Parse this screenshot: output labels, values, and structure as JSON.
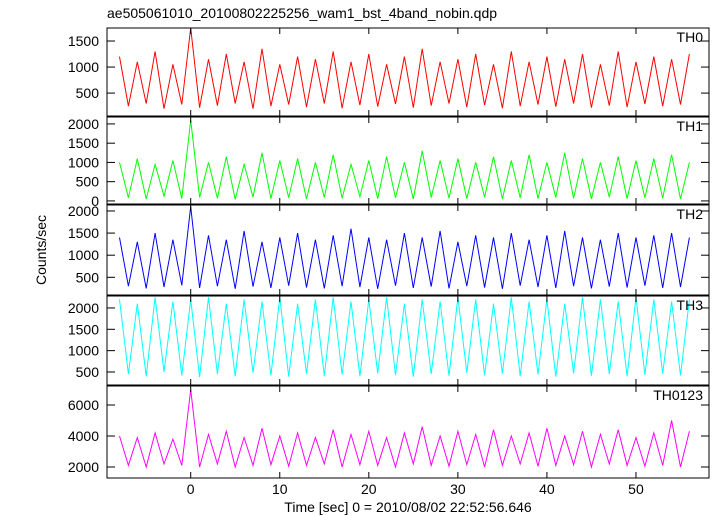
{
  "chart_data": [
    {
      "type": "line",
      "title": "ae505061010_20100802225256_wam1_bst_4band_nobin.qdp",
      "x": [
        -8,
        -7,
        -6,
        -5,
        -4,
        -3,
        -2,
        -1,
        0,
        1,
        2,
        3,
        4,
        5,
        6,
        7,
        8,
        9,
        10,
        11,
        12,
        13,
        14,
        15,
        16,
        17,
        18,
        19,
        20,
        21,
        22,
        23,
        24,
        25,
        26,
        27,
        28,
        29,
        30,
        31,
        32,
        33,
        34,
        35,
        36,
        37,
        38,
        39,
        40,
        41,
        42,
        43,
        44,
        45,
        46,
        47,
        48,
        49,
        50,
        51,
        52,
        53,
        54,
        55,
        56
      ],
      "series": [
        {
          "name": "TH0",
          "color": "#ff0000",
          "values": [
            1200,
            250,
            1100,
            300,
            1300,
            200,
            1050,
            280,
            1750,
            220,
            1150,
            260,
            1250,
            300,
            1100,
            200,
            1350,
            250,
            1050,
            280,
            1200,
            230,
            1150,
            300,
            1300,
            210,
            1100,
            270,
            1250,
            240,
            1050,
            290,
            1200,
            220,
            1350,
            260,
            1100,
            300,
            1150,
            230,
            1250,
            270,
            1050,
            210,
            1300,
            250,
            1100,
            280,
            1200,
            240,
            1150,
            300,
            1250,
            220,
            1050,
            260,
            1300,
            230,
            1100,
            290,
            1200,
            250,
            1150,
            280,
            1250
          ]
        }
      ],
      "xlim": [
        -9.4,
        58.2
      ],
      "xticks": [
        0,
        10,
        20,
        30,
        40,
        50
      ],
      "ylim": [
        60,
        1750
      ],
      "yticks": [
        500,
        1000,
        1500
      ]
    },
    {
      "type": "line",
      "x": [
        -8,
        -7,
        -6,
        -5,
        -4,
        -3,
        -2,
        -1,
        0,
        1,
        2,
        3,
        4,
        5,
        6,
        7,
        8,
        9,
        10,
        11,
        12,
        13,
        14,
        15,
        16,
        17,
        18,
        19,
        20,
        21,
        22,
        23,
        24,
        25,
        26,
        27,
        28,
        29,
        30,
        31,
        32,
        33,
        34,
        35,
        36,
        37,
        38,
        39,
        40,
        41,
        42,
        43,
        44,
        45,
        46,
        47,
        48,
        49,
        50,
        51,
        52,
        53,
        54,
        55,
        56
      ],
      "series": [
        {
          "name": "TH1",
          "color": "#00ff00",
          "values": [
            1000,
            80,
            1100,
            50,
            950,
            120,
            1050,
            60,
            2100,
            90,
            1000,
            70,
            1150,
            40,
            950,
            100,
            1250,
            60,
            1050,
            80,
            1100,
            50,
            1000,
            90,
            1200,
            70,
            950,
            110,
            1050,
            60,
            1150,
            80,
            1000,
            50,
            1300,
            90,
            1050,
            70,
            1100,
            60,
            1000,
            100,
            1150,
            50,
            1050,
            80,
            1200,
            60,
            1000,
            90,
            1250,
            70,
            1100,
            50,
            1000,
            100,
            1150,
            60,
            1050,
            80,
            1100,
            70,
            1200,
            50,
            1000
          ]
        }
      ],
      "xlim": [
        -9.4,
        58.2
      ],
      "xticks": [
        0,
        10,
        20,
        30,
        40,
        50
      ],
      "ylim": [
        -80,
        2180
      ],
      "yticks": [
        0,
        500,
        1000,
        1500,
        2000
      ]
    },
    {
      "type": "line",
      "ylabel": "Counts/sec",
      "x": [
        -8,
        -7,
        -6,
        -5,
        -4,
        -3,
        -2,
        -1,
        0,
        1,
        2,
        3,
        4,
        5,
        6,
        7,
        8,
        9,
        10,
        11,
        12,
        13,
        14,
        15,
        16,
        17,
        18,
        19,
        20,
        21,
        22,
        23,
        24,
        25,
        26,
        27,
        28,
        29,
        30,
        31,
        32,
        33,
        34,
        35,
        36,
        37,
        38,
        39,
        40,
        41,
        42,
        43,
        44,
        45,
        46,
        47,
        48,
        49,
        50,
        51,
        52,
        53,
        54,
        55,
        56
      ],
      "series": [
        {
          "name": "TH2",
          "color": "#0000ff",
          "values": [
            1400,
            300,
            1300,
            250,
            1500,
            280,
            1350,
            320,
            2100,
            260,
            1450,
            300,
            1350,
            240,
            1550,
            290,
            1300,
            260,
            1400,
            310,
            1500,
            270,
            1350,
            250,
            1450,
            300,
            1600,
            280,
            1400,
            240,
            1350,
            310,
            1500,
            260,
            1400,
            290,
            1550,
            250,
            1300,
            300,
            1450,
            270,
            1400,
            240,
            1500,
            310,
            1350,
            280,
            1450,
            260,
            1550,
            300,
            1400,
            250,
            1350,
            290,
            1500,
            270,
            1400,
            310,
            1450,
            260,
            1500,
            280,
            1400
          ]
        }
      ],
      "xlim": [
        -9.4,
        58.2
      ],
      "xticks": [
        0,
        10,
        20,
        30,
        40,
        50
      ],
      "ylim": [
        100,
        2135
      ],
      "yticks": [
        500,
        1000,
        1500,
        2000
      ]
    },
    {
      "type": "line",
      "x": [
        -8,
        -7,
        -6,
        -5,
        -4,
        -3,
        -2,
        -1,
        0,
        1,
        2,
        3,
        4,
        5,
        6,
        7,
        8,
        9,
        10,
        11,
        12,
        13,
        14,
        15,
        16,
        17,
        18,
        19,
        20,
        21,
        22,
        23,
        24,
        25,
        26,
        27,
        28,
        29,
        30,
        31,
        32,
        33,
        34,
        35,
        36,
        37,
        38,
        39,
        40,
        41,
        42,
        43,
        44,
        45,
        46,
        47,
        48,
        49,
        50,
        51,
        52,
        53,
        54,
        55,
        56
      ],
      "series": [
        {
          "name": "TH3",
          "color": "#00ffff",
          "values": [
            2200,
            450,
            2100,
            400,
            2250,
            500,
            2150,
            420,
            2200,
            380,
            2250,
            450,
            2100,
            400,
            2200,
            480,
            2150,
            420,
            2250,
            390,
            2100,
            460,
            2200,
            410,
            2250,
            440,
            2150,
            400,
            2200,
            470,
            2250,
            430,
            2100,
            390,
            2200,
            450,
            2150,
            410,
            2250,
            480,
            2200,
            420,
            2100,
            460,
            2250,
            400,
            2150,
            440,
            2200,
            390,
            2100,
            470,
            2250,
            410,
            2200,
            450,
            2150,
            400,
            2250,
            430,
            2200,
            460,
            2150,
            420,
            2200
          ]
        }
      ],
      "xlim": [
        -9.4,
        58.2
      ],
      "xticks": [
        0,
        10,
        20,
        30,
        40,
        50
      ],
      "ylim": [
        195,
        2280
      ],
      "yticks": [
        500,
        1000,
        1500,
        2000
      ]
    },
    {
      "type": "line",
      "xlabel": "Time [sec] 0 = 2010/08/02 22:52:56.646",
      "x": [
        -8,
        -7,
        -6,
        -5,
        -4,
        -3,
        -2,
        -1,
        0,
        1,
        2,
        3,
        4,
        5,
        6,
        7,
        8,
        9,
        10,
        11,
        12,
        13,
        14,
        15,
        16,
        17,
        18,
        19,
        20,
        21,
        22,
        23,
        24,
        25,
        26,
        27,
        28,
        29,
        30,
        31,
        32,
        33,
        34,
        35,
        36,
        37,
        38,
        39,
        40,
        41,
        42,
        43,
        44,
        45,
        46,
        47,
        48,
        49,
        50,
        51,
        52,
        53,
        54,
        55,
        56
      ],
      "series": [
        {
          "name": "TH0123",
          "color": "#ff00ff",
          "values": [
            4000,
            2100,
            3900,
            2000,
            4200,
            2200,
            3800,
            2100,
            7000,
            2000,
            4100,
            2200,
            4300,
            2000,
            3900,
            2100,
            4500,
            2150,
            4000,
            2050,
            4200,
            2100,
            3900,
            2200,
            4400,
            2000,
            4100,
            2150,
            4300,
            2100,
            3900,
            2000,
            4200,
            2200,
            4600,
            2100,
            4000,
            2050,
            4300,
            2150,
            4100,
            2000,
            4400,
            2100,
            4000,
            2200,
            4200,
            2050,
            4500,
            2100,
            4000,
            2150,
            4300,
            2000,
            4100,
            2200,
            4400,
            2100,
            3900,
            2050,
            4200,
            2100,
            5000,
            2000,
            4300
          ]
        }
      ],
      "xlim": [
        -9.4,
        58.2
      ],
      "xticks": [
        0,
        10,
        20,
        30,
        40,
        50
      ],
      "ylim": [
        1290,
        7225
      ],
      "yticks": [
        2000,
        4000,
        6000
      ]
    }
  ]
}
